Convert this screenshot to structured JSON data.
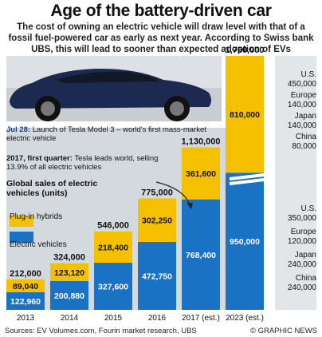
{
  "header": {
    "title": "Age of the battery-driven car",
    "subtitle": "The cost of owning an electric vehicle will draw level with that of a fossil fuel-powered car as early as next year. According to Swiss bank UBS, this will lead to sooner than expected adoption of EVs"
  },
  "annotations": {
    "tesla_launch_date": "Jul 28:",
    "tesla_launch_text": "Launch of Tesla Model 3 – world's first mass-market electric vehicle",
    "tesla_q1_date": "2017, first quarter:",
    "tesla_q1_text": "Tesla leads world, selling 13.9% of all electric vehicles"
  },
  "legend": {
    "heading": "Global sales of electric vehicles (units)",
    "hybrid_label": "Plug-in hybrids",
    "ev_label": "Electric vehicles"
  },
  "regions": {
    "hybrid": [
      {
        "name": "U.S.",
        "value": "450,000"
      },
      {
        "name": "Europe",
        "value": "140,000"
      },
      {
        "name": "Japan",
        "value": "140,000"
      },
      {
        "name": "China",
        "value": "80,000"
      }
    ],
    "ev": [
      {
        "name": "U.S.",
        "value": "350,000"
      },
      {
        "name": "Europe",
        "value": "120,000"
      },
      {
        "name": "Japan",
        "value": "240,000"
      },
      {
        "name": "China",
        "value": "240,000"
      }
    ]
  },
  "footer": {
    "sources": "Sources: EV Volumes.com, Fourin market research, UBS",
    "credit": "© GRAPHIC NEWS"
  },
  "colors": {
    "hybrid": "#f5c000",
    "ev": "#1a72c4",
    "text": "#111111"
  },
  "chart_data": {
    "type": "bar",
    "stacked": true,
    "categories": [
      "2013",
      "2014",
      "2015",
      "2016",
      "2017 (est.)",
      "2023 (est.)"
    ],
    "series": [
      {
        "name": "Electric vehicles",
        "values": [
          122960,
          200880,
          327600,
          472750,
          768400,
          950000
        ]
      },
      {
        "name": "Plug-in hybrids",
        "values": [
          89040,
          123120,
          218400,
          302250,
          361600,
          810000
        ]
      }
    ],
    "series_labels": [
      [
        "122,960",
        "200,880",
        "327,600",
        "472,750",
        "768,400",
        "950,000"
      ],
      [
        "89,040",
        "123,120",
        "218,400",
        "302,250",
        "361,600",
        "810,000"
      ]
    ],
    "totals": [
      "212,000",
      "324,000",
      "546,000",
      "775,000",
      "1,130,000",
      "1,760,000"
    ],
    "axis_break": true,
    "legend_position": "left"
  }
}
